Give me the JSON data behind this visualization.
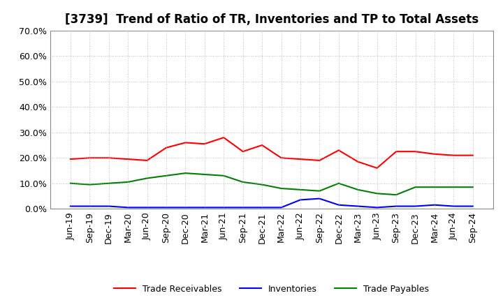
{
  "title": "[3739]  Trend of Ratio of TR, Inventories and TP to Total Assets",
  "x_labels": [
    "Jun-19",
    "Sep-19",
    "Dec-19",
    "Mar-20",
    "Jun-20",
    "Sep-20",
    "Dec-20",
    "Mar-21",
    "Jun-21",
    "Sep-21",
    "Dec-21",
    "Mar-22",
    "Jun-22",
    "Sep-22",
    "Dec-22",
    "Mar-23",
    "Jun-23",
    "Sep-23",
    "Dec-23",
    "Mar-24",
    "Jun-24",
    "Sep-24"
  ],
  "trade_receivables": [
    0.195,
    0.2,
    0.2,
    0.195,
    0.19,
    0.24,
    0.26,
    0.255,
    0.28,
    0.225,
    0.25,
    0.2,
    0.195,
    0.19,
    0.23,
    0.185,
    0.16,
    0.225,
    0.225,
    0.215,
    0.21,
    0.21
  ],
  "inventories": [
    0.01,
    0.01,
    0.01,
    0.005,
    0.005,
    0.005,
    0.005,
    0.005,
    0.005,
    0.005,
    0.005,
    0.005,
    0.035,
    0.04,
    0.015,
    0.01,
    0.005,
    0.01,
    0.01,
    0.015,
    0.01,
    0.01
  ],
  "trade_payables": [
    0.1,
    0.095,
    0.1,
    0.105,
    0.12,
    0.13,
    0.14,
    0.135,
    0.13,
    0.105,
    0.095,
    0.08,
    0.075,
    0.07,
    0.1,
    0.075,
    0.06,
    0.055,
    0.085,
    0.085,
    0.085,
    0.085
  ],
  "tr_color": "#FF0000",
  "inv_color": "#0000FF",
  "tp_color": "#008000",
  "ylim": [
    0.0,
    0.7
  ],
  "yticks": [
    0.0,
    0.1,
    0.2,
    0.3,
    0.4,
    0.5,
    0.6,
    0.7
  ],
  "background_color": "#FFFFFF",
  "plot_bg_color": "#FFFFFF",
  "grid_color": "#AAAAAA",
  "title_fontsize": 12,
  "tick_fontsize": 9,
  "legend_fontsize": 9
}
